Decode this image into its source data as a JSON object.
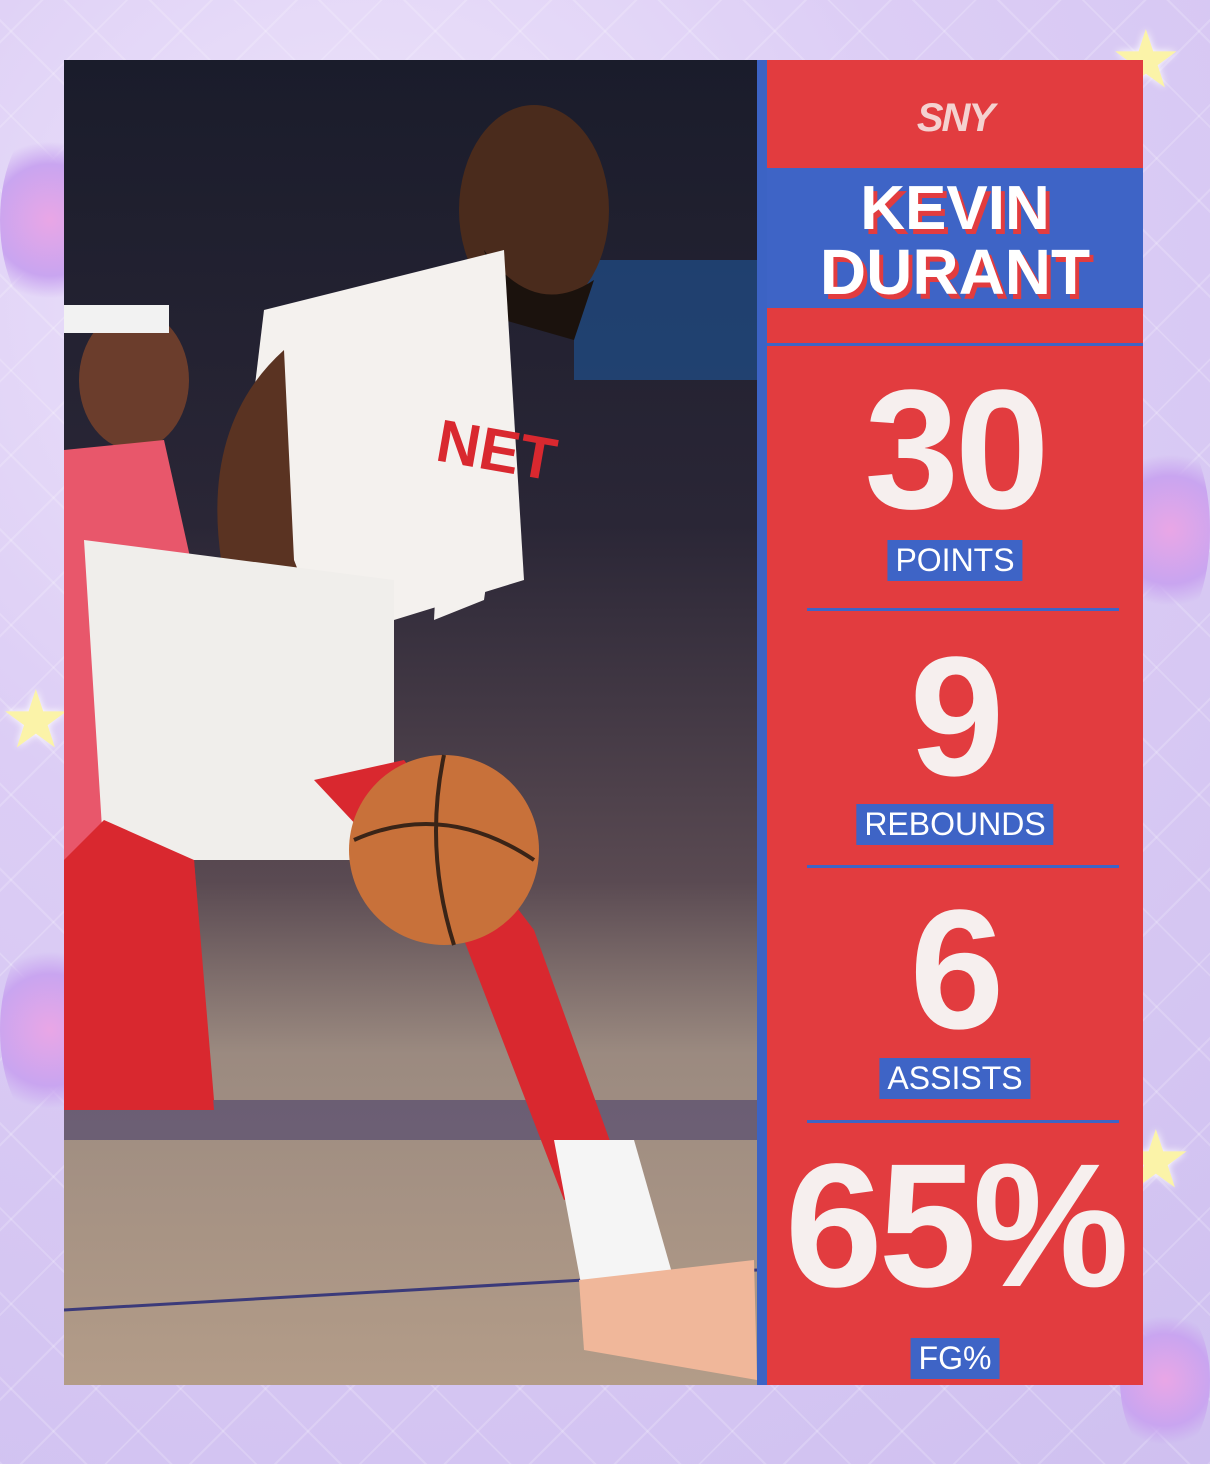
{
  "brand": {
    "logo_text": "SNY"
  },
  "player": {
    "first_name": "KEVIN",
    "last_name": "DURANT"
  },
  "stats": [
    {
      "value": "30",
      "label": "POINTS"
    },
    {
      "value": "9",
      "label": "REBOUNDS"
    },
    {
      "value": "6",
      "label": "ASSISTS"
    },
    {
      "value": "65%",
      "label": "FG%"
    }
  ],
  "colors": {
    "panel_red": "#e23c3f",
    "accent_blue": "#3e64c6",
    "background_lavender": "#dccdf5"
  }
}
